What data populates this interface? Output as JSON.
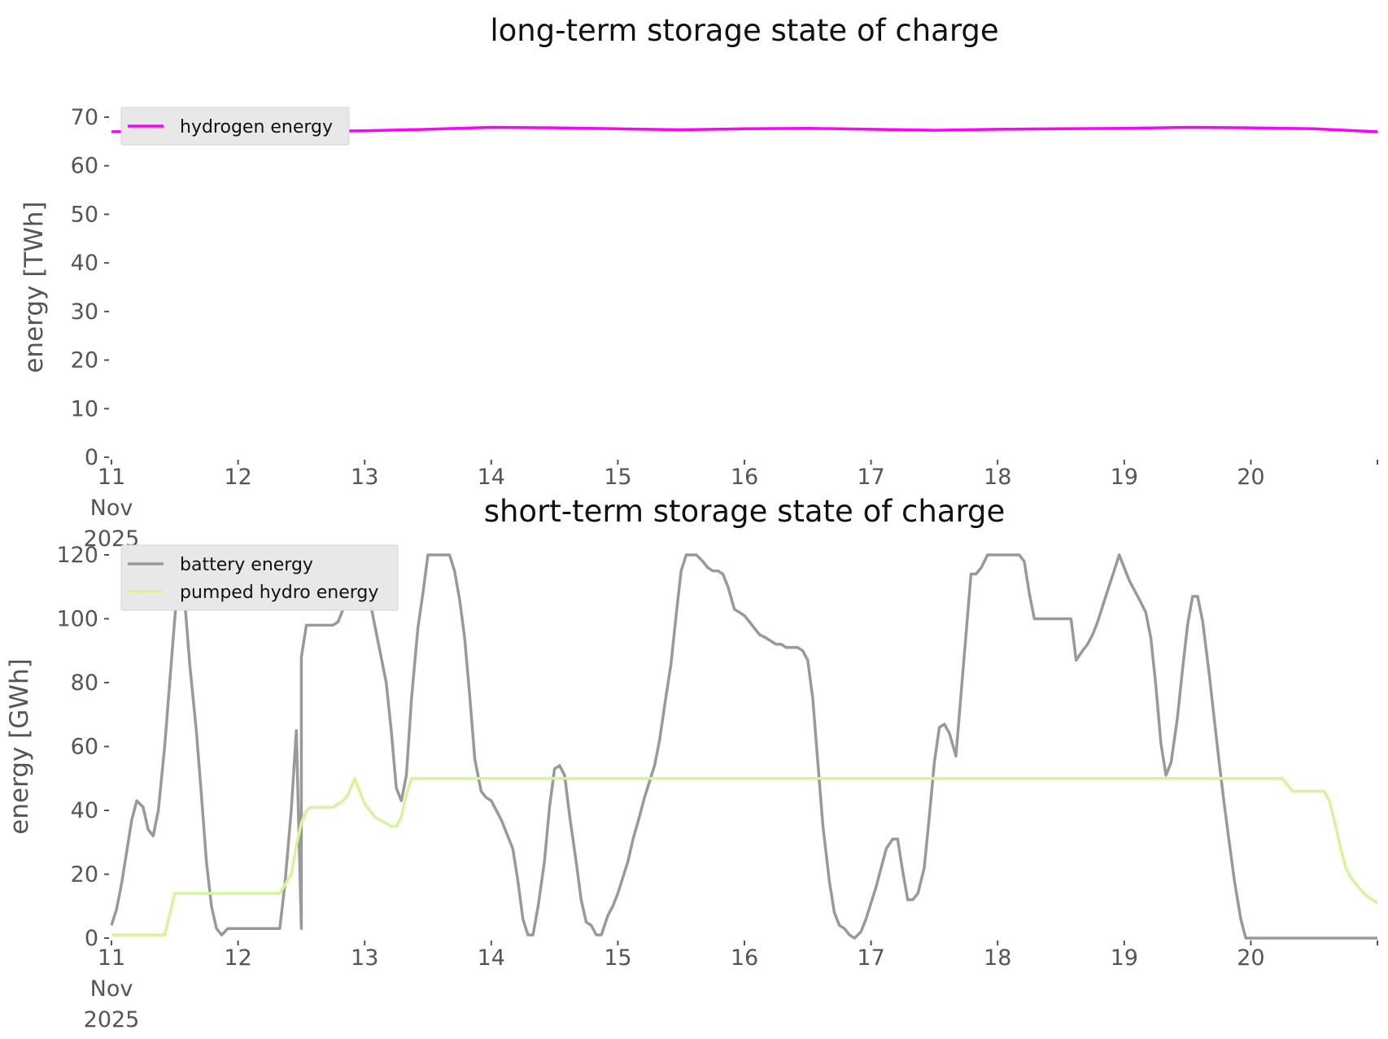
{
  "chart_data": [
    {
      "type": "line",
      "title": "long-term storage state of charge",
      "xlabel": "",
      "ylabel": "energy [TWh]",
      "xlim": [
        "2025-11-11",
        "2025-11-21"
      ],
      "ylim": [
        0,
        70
      ],
      "yticks": [
        0,
        10,
        20,
        30,
        40,
        50,
        60,
        70
      ],
      "x_tick_labels": [
        "11\nNov\n2025",
        "12",
        "13",
        "14",
        "15",
        "16",
        "17",
        "18",
        "19",
        "20"
      ],
      "grid": false,
      "legend": "top-left",
      "series": [
        {
          "name": "hydrogen energy",
          "color": "#ff00ff",
          "points": [
            [
              0,
              67.0
            ],
            [
              1,
              67.1
            ],
            [
              1.5,
              67.1
            ],
            [
              2,
              67.2
            ],
            [
              2.5,
              67.5
            ],
            [
              3,
              67.9
            ],
            [
              3.5,
              67.8
            ],
            [
              4,
              67.6
            ],
            [
              4.5,
              67.4
            ],
            [
              5,
              67.6
            ],
            [
              5.5,
              67.7
            ],
            [
              6,
              67.5
            ],
            [
              6.5,
              67.3
            ],
            [
              7,
              67.5
            ],
            [
              7.5,
              67.6
            ],
            [
              8,
              67.7
            ],
            [
              8.5,
              67.9
            ],
            [
              9,
              67.8
            ],
            [
              9.5,
              67.6
            ],
            [
              10,
              67.0
            ]
          ]
        }
      ]
    },
    {
      "type": "line",
      "title": "short-term storage state of charge",
      "xlabel": "",
      "ylabel": "energy [GWh]",
      "xlim": [
        "2025-11-11",
        "2025-11-21"
      ],
      "ylim": [
        0,
        120
      ],
      "yticks": [
        0,
        20,
        40,
        60,
        80,
        100,
        120
      ],
      "x_tick_labels": [
        "11\nNov\n2025",
        "12",
        "13",
        "14",
        "15",
        "16",
        "17",
        "18",
        "19",
        "20"
      ],
      "grid": false,
      "legend": "top-left",
      "series": [
        {
          "name": "battery energy",
          "color": "#999999",
          "points": [
            [
              0.0,
              4
            ],
            [
              0.04,
              9
            ],
            [
              0.08,
              17
            ],
            [
              0.12,
              27
            ],
            [
              0.16,
              37
            ],
            [
              0.2,
              43
            ],
            [
              0.25,
              41
            ],
            [
              0.29,
              34
            ],
            [
              0.33,
              32
            ],
            [
              0.37,
              40
            ],
            [
              0.42,
              60
            ],
            [
              0.46,
              80
            ],
            [
              0.5,
              100
            ],
            [
              0.54,
              120
            ],
            [
              0.58,
              105
            ],
            [
              0.62,
              85
            ],
            [
              0.67,
              65
            ],
            [
              0.71,
              45
            ],
            [
              0.75,
              24
            ],
            [
              0.79,
              10
            ],
            [
              0.83,
              3
            ],
            [
              0.87,
              1
            ],
            [
              0.92,
              3
            ],
            [
              1.0,
              3
            ],
            [
              1.5,
              3
            ],
            [
              1.33,
              3
            ],
            [
              1.37,
              17
            ],
            [
              1.42,
              40
            ],
            [
              1.46,
              65
            ],
            [
              1.5,
              88
            ],
            [
              1.54,
              98
            ],
            [
              1.58,
              98
            ],
            [
              1.62,
              98
            ],
            [
              1.75,
              98
            ],
            [
              1.79,
              99
            ],
            [
              1.83,
              103
            ],
            [
              1.87,
              110
            ],
            [
              1.96,
              120
            ],
            [
              2.0,
              114
            ],
            [
              2.04,
              106
            ],
            [
              2.08,
              98
            ],
            [
              2.12,
              90
            ],
            [
              2.17,
              80
            ],
            [
              2.21,
              65
            ],
            [
              2.25,
              47
            ],
            [
              2.29,
              43
            ],
            [
              2.33,
              51
            ],
            [
              2.37,
              75
            ],
            [
              2.42,
              97
            ],
            [
              2.46,
              108
            ],
            [
              2.5,
              120
            ],
            [
              2.58,
              120
            ],
            [
              2.67,
              120
            ],
            [
              2.71,
              115
            ],
            [
              2.75,
              106
            ],
            [
              2.79,
              94
            ],
            [
              2.83,
              76
            ],
            [
              2.87,
              56
            ],
            [
              2.92,
              46
            ],
            [
              2.96,
              44
            ],
            [
              3.0,
              43
            ],
            [
              3.04,
              40
            ],
            [
              3.08,
              37
            ],
            [
              3.12,
              33
            ],
            [
              3.17,
              28
            ],
            [
              3.21,
              18
            ],
            [
              3.25,
              6
            ],
            [
              3.29,
              1
            ],
            [
              3.33,
              1
            ],
            [
              3.37,
              10
            ],
            [
              3.42,
              24
            ],
            [
              3.46,
              41
            ],
            [
              3.5,
              53
            ],
            [
              3.54,
              54
            ],
            [
              3.58,
              51
            ],
            [
              3.62,
              38
            ],
            [
              3.67,
              24
            ],
            [
              3.71,
              12
            ],
            [
              3.75,
              5
            ],
            [
              3.79,
              4
            ],
            [
              3.83,
              1
            ],
            [
              3.87,
              1
            ],
            [
              3.92,
              7
            ],
            [
              3.96,
              10
            ],
            [
              4.0,
              14
            ],
            [
              4.04,
              19
            ],
            [
              4.08,
              24
            ],
            [
              4.12,
              31
            ],
            [
              4.17,
              38
            ],
            [
              4.21,
              44
            ],
            [
              4.25,
              49
            ],
            [
              4.29,
              54
            ],
            [
              4.33,
              62
            ],
            [
              4.37,
              73
            ],
            [
              4.42,
              86
            ],
            [
              4.46,
              101
            ],
            [
              4.5,
              115
            ],
            [
              4.54,
              120
            ],
            [
              4.62,
              120
            ],
            [
              4.67,
              118
            ],
            [
              4.71,
              116
            ],
            [
              4.75,
              115
            ],
            [
              4.79,
              115
            ],
            [
              4.83,
              114
            ],
            [
              4.87,
              110
            ],
            [
              4.92,
              103
            ],
            [
              4.96,
              102
            ],
            [
              5.0,
              101
            ],
            [
              5.04,
              99
            ],
            [
              5.08,
              97
            ],
            [
              5.12,
              95
            ],
            [
              5.17,
              94
            ],
            [
              5.21,
              93
            ],
            [
              5.25,
              92
            ],
            [
              5.29,
              92
            ],
            [
              5.33,
              91
            ],
            [
              5.42,
              91
            ],
            [
              5.46,
              90
            ],
            [
              5.5,
              87
            ],
            [
              5.54,
              75
            ],
            [
              5.58,
              55
            ],
            [
              5.62,
              35
            ],
            [
              5.67,
              18
            ],
            [
              5.71,
              8
            ],
            [
              5.75,
              4
            ],
            [
              5.79,
              3
            ],
            [
              5.83,
              1
            ],
            [
              5.87,
              0
            ],
            [
              5.92,
              2
            ],
            [
              5.96,
              6
            ],
            [
              6.0,
              11
            ],
            [
              6.04,
              16
            ],
            [
              6.08,
              22
            ],
            [
              6.12,
              28
            ],
            [
              6.17,
              31
            ],
            [
              6.21,
              31
            ],
            [
              6.25,
              21
            ],
            [
              6.29,
              12
            ],
            [
              6.33,
              12
            ],
            [
              6.37,
              14
            ],
            [
              6.42,
              22
            ],
            [
              6.46,
              38
            ],
            [
              6.5,
              55
            ],
            [
              6.54,
              66
            ],
            [
              6.58,
              67
            ],
            [
              6.62,
              64
            ],
            [
              6.67,
              57
            ],
            [
              6.71,
              76
            ],
            [
              6.75,
              95
            ],
            [
              6.79,
              114
            ],
            [
              6.83,
              114
            ],
            [
              6.87,
              116
            ],
            [
              6.92,
              120
            ],
            [
              7.0,
              120
            ],
            [
              7.17,
              120
            ],
            [
              7.21,
              118
            ],
            [
              7.25,
              108
            ],
            [
              7.29,
              100
            ],
            [
              7.33,
              100
            ],
            [
              7.58,
              100
            ],
            [
              7.62,
              87
            ],
            [
              7.67,
              90
            ],
            [
              7.71,
              92
            ],
            [
              7.75,
              95
            ],
            [
              7.79,
              99
            ],
            [
              7.83,
              104
            ],
            [
              7.87,
              109
            ],
            [
              7.92,
              115
            ],
            [
              7.96,
              120
            ],
            [
              8.0,
              116
            ],
            [
              8.04,
              112
            ],
            [
              8.08,
              109
            ],
            [
              8.12,
              106
            ],
            [
              8.17,
              102
            ],
            [
              8.21,
              94
            ],
            [
              8.25,
              79
            ],
            [
              8.29,
              61
            ],
            [
              8.33,
              51
            ],
            [
              8.37,
              55
            ],
            [
              8.42,
              69
            ],
            [
              8.46,
              84
            ],
            [
              8.5,
              98
            ],
            [
              8.54,
              107
            ],
            [
              8.58,
              107
            ],
            [
              8.62,
              99
            ],
            [
              8.67,
              83
            ],
            [
              8.71,
              69
            ],
            [
              8.75,
              55
            ],
            [
              8.79,
              42
            ],
            [
              8.83,
              30
            ],
            [
              8.87,
              18
            ],
            [
              8.92,
              6
            ],
            [
              8.96,
              0
            ],
            [
              9.0,
              0
            ],
            [
              10.0,
              0
            ]
          ]
        },
        {
          "name": "pumped hydro energy",
          "color": "#d5f59a",
          "points": [
            [
              0.0,
              1
            ],
            [
              0.42,
              1
            ],
            [
              0.5,
              14
            ],
            [
              0.58,
              14
            ],
            [
              1.0,
              14
            ],
            [
              1.33,
              14
            ],
            [
              1.42,
              20
            ],
            [
              1.46,
              29
            ],
            [
              1.5,
              36
            ],
            [
              1.54,
              40
            ],
            [
              1.58,
              41
            ],
            [
              1.62,
              41
            ],
            [
              1.75,
              41
            ],
            [
              1.79,
              42
            ],
            [
              1.83,
              43
            ],
            [
              1.87,
              45
            ],
            [
              1.92,
              50
            ],
            [
              1.96,
              46
            ],
            [
              2.0,
              42
            ],
            [
              2.04,
              40
            ],
            [
              2.08,
              38
            ],
            [
              2.12,
              37
            ],
            [
              2.17,
              36
            ],
            [
              2.21,
              35
            ],
            [
              2.25,
              35
            ],
            [
              2.29,
              38
            ],
            [
              2.33,
              45
            ],
            [
              2.37,
              50
            ],
            [
              2.5,
              50
            ],
            [
              3.0,
              50
            ],
            [
              4.0,
              50
            ],
            [
              5.0,
              50
            ],
            [
              6.0,
              50
            ],
            [
              7.0,
              50
            ],
            [
              8.0,
              50
            ],
            [
              9.0,
              50
            ],
            [
              9.25,
              50
            ],
            [
              9.29,
              48
            ],
            [
              9.33,
              46
            ],
            [
              9.42,
              46
            ],
            [
              9.5,
              46
            ],
            [
              9.58,
              46
            ],
            [
              9.62,
              43
            ],
            [
              9.67,
              35
            ],
            [
              9.71,
              28
            ],
            [
              9.75,
              22
            ],
            [
              9.79,
              19
            ],
            [
              9.83,
              17
            ],
            [
              9.87,
              15
            ],
            [
              9.92,
              13
            ],
            [
              10.0,
              11
            ]
          ]
        }
      ]
    }
  ]
}
